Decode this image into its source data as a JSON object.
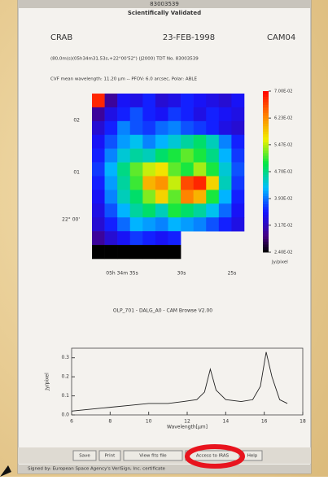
{
  "window": {
    "title": "83003539",
    "subtitle": "Scientifically Validated"
  },
  "header": {
    "object": "CRAB",
    "date": "23-FEB-1998",
    "instrument": "CAM04",
    "coords": "(80,0m(s)(05h34m31.53s,+22°00'52\") (J2000) TDT No. 83003539",
    "details": "CVF mean wavelength: 11.20 µm -- PFOV: 6.0 arcsec, Polar: ABLE"
  },
  "image": {
    "values": [
      [
        0.068,
        0.03,
        0.035,
        0.034,
        0.036,
        0.033,
        0.034,
        0.036,
        0.035,
        0.034,
        0.033,
        0.035
      ],
      [
        0.03,
        0.034,
        0.036,
        0.038,
        0.036,
        0.035,
        0.037,
        0.036,
        0.034,
        0.036,
        0.035,
        0.034
      ],
      [
        0.033,
        0.036,
        0.04,
        0.038,
        0.037,
        0.039,
        0.04,
        0.038,
        0.037,
        0.036,
        0.034,
        0.033
      ],
      [
        0.035,
        0.038,
        0.041,
        0.043,
        0.04,
        0.042,
        0.044,
        0.046,
        0.048,
        0.045,
        0.04,
        0.036
      ],
      [
        0.036,
        0.04,
        0.044,
        0.046,
        0.045,
        0.048,
        0.05,
        0.052,
        0.05,
        0.047,
        0.042,
        0.037
      ],
      [
        0.037,
        0.042,
        0.047,
        0.052,
        0.055,
        0.057,
        0.052,
        0.05,
        0.054,
        0.05,
        0.044,
        0.038
      ],
      [
        0.036,
        0.041,
        0.046,
        0.051,
        0.06,
        0.062,
        0.055,
        0.066,
        0.068,
        0.058,
        0.045,
        0.037
      ],
      [
        0.035,
        0.04,
        0.045,
        0.048,
        0.053,
        0.058,
        0.052,
        0.063,
        0.06,
        0.05,
        0.042,
        0.036
      ],
      [
        0.034,
        0.038,
        0.042,
        0.046,
        0.048,
        0.045,
        0.05,
        0.048,
        0.046,
        0.043,
        0.039,
        0.035
      ],
      [
        0.033,
        0.036,
        0.039,
        0.042,
        0.041,
        0.04,
        0.042,
        0.041,
        0.04,
        0.038,
        0.036,
        0.034
      ],
      [
        0.03,
        0.033,
        0.035,
        0.037,
        0.036,
        0.035,
        0.036,
        null,
        null,
        null,
        null,
        null
      ],
      [
        0.024,
        0.024,
        0.024,
        0.024,
        0.024,
        0.024,
        0.024,
        null,
        null,
        null,
        null,
        null
      ]
    ],
    "clim": [
      0.024,
      0.07
    ],
    "colorbar_ticks": [
      {
        "value": 0.07,
        "label": "7.00E-02"
      },
      {
        "value": 0.0623,
        "label": "6.23E-02"
      },
      {
        "value": 0.0547,
        "label": "5.47E-02"
      },
      {
        "value": 0.047,
        "label": "4.70E-02"
      },
      {
        "value": 0.0393,
        "label": "3.93E-02"
      },
      {
        "value": 0.0317,
        "label": "3.17E-02"
      },
      {
        "value": 0.024,
        "label": "2.40E-02"
      }
    ],
    "colorbar_unit": "Jy/pixel",
    "y_labels": [
      "02",
      "01",
      "22° 00'"
    ],
    "x_labels": [
      "05h 34m 35s",
      "30s",
      "25s"
    ]
  },
  "caption": "OLP_701 - DALG_A0 - CAM Browse V2.00",
  "chart_data": {
    "type": "line",
    "x_label": "Wavelength[µm]",
    "y_label": "Jy/pixel",
    "x": [
      6,
      7,
      8,
      9,
      10,
      11,
      11.8,
      12.5,
      12.9,
      13.2,
      13.5,
      14,
      14.8,
      15.4,
      15.8,
      16.1,
      16.4,
      16.8,
      17.2
    ],
    "series": [
      {
        "color": "#222222",
        "values": [
          0.02,
          0.03,
          0.04,
          0.05,
          0.06,
          0.06,
          0.07,
          0.08,
          0.12,
          0.24,
          0.13,
          0.08,
          0.07,
          0.08,
          0.15,
          0.33,
          0.2,
          0.08,
          0.06
        ]
      }
    ],
    "xlim": [
      6,
      18
    ],
    "xticks": [
      6,
      8,
      10,
      12,
      14,
      16,
      18
    ],
    "ylim": [
      0,
      0.35
    ],
    "yticks": [
      {
        "value": 0,
        "label": "0.0"
      },
      0.1,
      0.2,
      0.3
    ]
  },
  "buttons": [
    "Save",
    "Print",
    "View fits file",
    "Access to IRAS",
    "Help"
  ],
  "status": "Signed by: European Space Agency's VeriSign, Inc. certificate"
}
